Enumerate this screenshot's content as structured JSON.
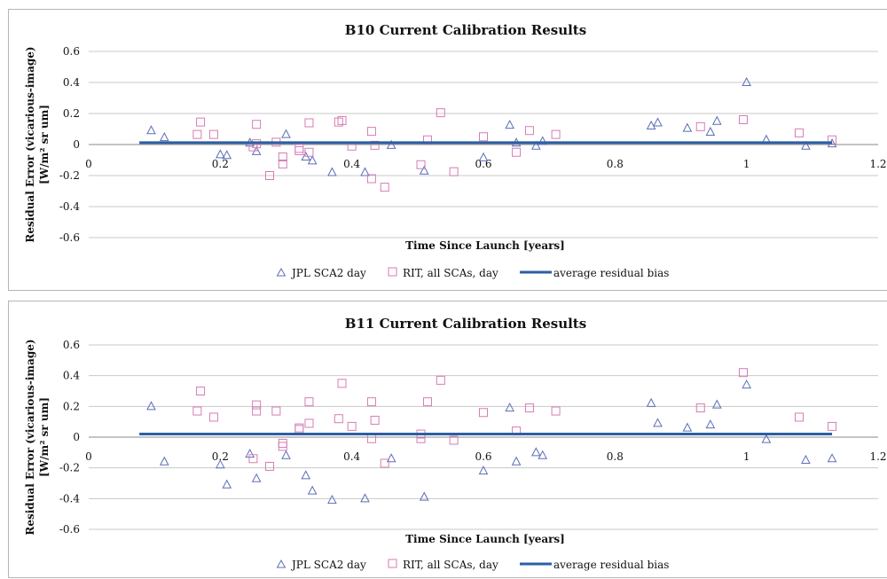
{
  "chart_data": [
    {
      "type": "scatter",
      "title": "B10 Current Calibration Results",
      "xlabel": "Time Since Launch [years]",
      "ylabel_line1": "Residual Error (vicarious-image)",
      "ylabel_line2": "[W/m² sr um]",
      "xlim": [
        0,
        1.2
      ],
      "ylim": [
        -0.6,
        0.6
      ],
      "x_ticks": [
        0,
        0.2,
        0.4,
        0.6,
        0.8,
        1,
        1.2
      ],
      "x_tick_labels": [
        "0",
        "0.2",
        "0.4",
        "0.6",
        "0.8",
        "1",
        "1.2"
      ],
      "y_ticks": [
        0.6,
        0.4,
        0.2,
        0,
        -0.2,
        -0.4,
        -0.6
      ],
      "y_tick_labels": [
        "0.6",
        "0.4",
        "0.2",
        "0",
        "-0.2",
        "-0.4",
        "-0.6"
      ],
      "grid": true,
      "legend_position": "bottom",
      "series": [
        {
          "name": "JPL SCA2 day",
          "marker": "triangle",
          "color": "#5b6fb5",
          "points": [
            [
              0.095,
              0.09
            ],
            [
              0.115,
              0.045
            ],
            [
              0.2,
              -0.065
            ],
            [
              0.21,
              -0.07
            ],
            [
              0.245,
              0.01
            ],
            [
              0.255,
              -0.045
            ],
            [
              0.3,
              0.065
            ],
            [
              0.33,
              -0.08
            ],
            [
              0.34,
              -0.105
            ],
            [
              0.37,
              -0.18
            ],
            [
              0.42,
              -0.18
            ],
            [
              0.46,
              -0.005
            ],
            [
              0.51,
              -0.17
            ],
            [
              0.6,
              -0.085
            ],
            [
              0.64,
              0.125
            ],
            [
              0.65,
              0.01
            ],
            [
              0.68,
              -0.01
            ],
            [
              0.69,
              0.02
            ],
            [
              0.855,
              0.12
            ],
            [
              0.865,
              0.14
            ],
            [
              0.91,
              0.105
            ],
            [
              0.945,
              0.08
            ],
            [
              0.955,
              0.15
            ],
            [
              1.0,
              0.4
            ],
            [
              1.03,
              0.03
            ],
            [
              1.09,
              -0.01
            ],
            [
              1.13,
              0.005
            ]
          ]
        },
        {
          "name": "RIT, all SCAs, day",
          "marker": "square",
          "color": "#d77bb5",
          "points": [
            [
              0.165,
              0.065
            ],
            [
              0.17,
              0.145
            ],
            [
              0.19,
              0.065
            ],
            [
              0.25,
              -0.015
            ],
            [
              0.255,
              0.13
            ],
            [
              0.255,
              0.005
            ],
            [
              0.275,
              -0.2
            ],
            [
              0.285,
              0.015
            ],
            [
              0.295,
              -0.08
            ],
            [
              0.295,
              -0.125
            ],
            [
              0.32,
              -0.025
            ],
            [
              0.32,
              -0.04
            ],
            [
              0.335,
              0.14
            ],
            [
              0.335,
              -0.05
            ],
            [
              0.38,
              0.145
            ],
            [
              0.385,
              0.155
            ],
            [
              0.4,
              -0.01
            ],
            [
              0.43,
              0.085
            ],
            [
              0.43,
              -0.22
            ],
            [
              0.435,
              -0.005
            ],
            [
              0.45,
              -0.275
            ],
            [
              0.505,
              -0.13
            ],
            [
              0.515,
              0.03
            ],
            [
              0.535,
              0.205
            ],
            [
              0.555,
              -0.175
            ],
            [
              0.6,
              0.05
            ],
            [
              0.65,
              -0.05
            ],
            [
              0.67,
              0.09
            ],
            [
              0.71,
              0.065
            ],
            [
              0.93,
              0.115
            ],
            [
              0.995,
              0.16
            ],
            [
              1.08,
              0.075
            ],
            [
              1.13,
              0.03
            ]
          ]
        },
        {
          "name": "average residual bias",
          "marker": "line",
          "color": "#2b5fa4",
          "x": [
            0.077,
            1.13
          ],
          "values": [
            0.012,
            0.012
          ]
        }
      ]
    },
    {
      "type": "scatter",
      "title": "B11 Current Calibration Results",
      "xlabel": "Time Since Launch [years]",
      "ylabel_line1": "Residual Error (vicarious-image)",
      "ylabel_line2": "[W/m² sr um]",
      "xlim": [
        0,
        1.2
      ],
      "ylim": [
        -0.6,
        0.6
      ],
      "x_ticks": [
        0,
        0.2,
        0.4,
        0.6,
        0.8,
        1,
        1.2
      ],
      "x_tick_labels": [
        "0",
        "0.2",
        "0.4",
        "0.6",
        "0.8",
        "1",
        "1.2"
      ],
      "y_ticks": [
        0.6,
        0.4,
        0.2,
        0,
        -0.2,
        -0.4,
        -0.6
      ],
      "y_tick_labels": [
        "0.6",
        "0.4",
        "0.2",
        "0",
        "-0.2",
        "-0.4",
        "-0.6"
      ],
      "grid": true,
      "legend_position": "bottom",
      "series": [
        {
          "name": "JPL SCA2 day",
          "marker": "triangle",
          "color": "#5b6fb5",
          "points": [
            [
              0.095,
              0.2
            ],
            [
              0.115,
              -0.16
            ],
            [
              0.2,
              -0.18
            ],
            [
              0.21,
              -0.31
            ],
            [
              0.245,
              -0.11
            ],
            [
              0.255,
              -0.27
            ],
            [
              0.3,
              -0.12
            ],
            [
              0.33,
              -0.25
            ],
            [
              0.34,
              -0.35
            ],
            [
              0.37,
              -0.41
            ],
            [
              0.42,
              -0.4
            ],
            [
              0.46,
              -0.14
            ],
            [
              0.51,
              -0.39
            ],
            [
              0.6,
              -0.22
            ],
            [
              0.64,
              0.19
            ],
            [
              0.65,
              -0.16
            ],
            [
              0.68,
              -0.1
            ],
            [
              0.69,
              -0.12
            ],
            [
              0.855,
              0.22
            ],
            [
              0.865,
              0.09
            ],
            [
              0.91,
              0.06
            ],
            [
              0.945,
              0.08
            ],
            [
              0.955,
              0.21
            ],
            [
              1.0,
              0.34
            ],
            [
              1.03,
              -0.015
            ],
            [
              1.09,
              -0.15
            ],
            [
              1.13,
              -0.14
            ]
          ]
        },
        {
          "name": "RIT, all SCAs, day",
          "marker": "square",
          "color": "#d77bb5",
          "points": [
            [
              0.165,
              0.17
            ],
            [
              0.17,
              0.3
            ],
            [
              0.19,
              0.13
            ],
            [
              0.25,
              -0.14
            ],
            [
              0.255,
              0.21
            ],
            [
              0.255,
              0.17
            ],
            [
              0.275,
              -0.19
            ],
            [
              0.285,
              0.17
            ],
            [
              0.295,
              -0.06
            ],
            [
              0.295,
              -0.04
            ],
            [
              0.32,
              0.05
            ],
            [
              0.32,
              0.06
            ],
            [
              0.335,
              0.23
            ],
            [
              0.335,
              0.09
            ],
            [
              0.38,
              0.12
            ],
            [
              0.385,
              0.35
            ],
            [
              0.4,
              0.07
            ],
            [
              0.43,
              0.23
            ],
            [
              0.43,
              -0.01
            ],
            [
              0.435,
              0.11
            ],
            [
              0.45,
              -0.17
            ],
            [
              0.505,
              0.02
            ],
            [
              0.505,
              -0.01
            ],
            [
              0.515,
              0.23
            ],
            [
              0.535,
              0.37
            ],
            [
              0.555,
              -0.02
            ],
            [
              0.6,
              0.16
            ],
            [
              0.65,
              0.04
            ],
            [
              0.67,
              0.19
            ],
            [
              0.71,
              0.17
            ],
            [
              0.93,
              0.19
            ],
            [
              0.995,
              0.42
            ],
            [
              1.08,
              0.13
            ],
            [
              1.13,
              0.07
            ]
          ]
        },
        {
          "name": "average residual bias",
          "marker": "line",
          "color": "#2b5fa4",
          "x": [
            0.077,
            1.13
          ],
          "values": [
            0.02,
            0.02
          ]
        }
      ]
    }
  ]
}
